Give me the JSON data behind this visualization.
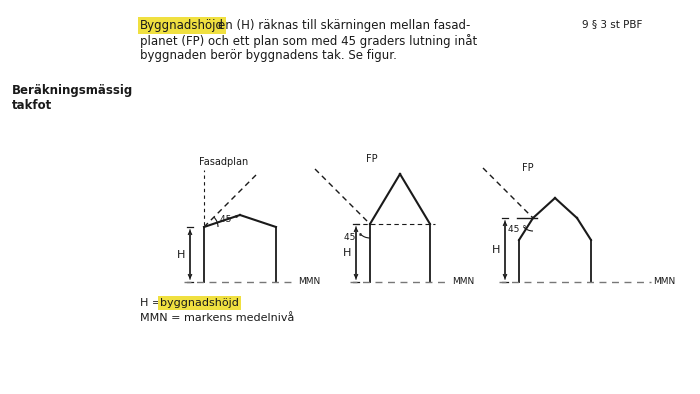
{
  "bg_color": "#ffffff",
  "text_color": "#231f20",
  "highlight_color": "#f0e040",
  "line_color": "#1a1a1a",
  "dashed_color": "#777777",
  "title_left_line1": "Beräkningsmässig",
  "title_left_line2": "takfot",
  "title_right": "9 § 3 st PBF",
  "main_text_highlighted": "Byggnadshöjd",
  "main_text_after": "en (H) räknas till skärningen mellan fasad-",
  "main_text_line2": "planet (FP) och ett plan som med 45 graders lutning inåt",
  "main_text_line3": "byggnaden berör byggnadens tak. Se figur.",
  "footnote1_pre": "H = ",
  "footnote1_highlighted": "byggnadshöjd",
  "footnote2": "MMN = markens medelnivå",
  "fig1_label": "Fasadplan",
  "fig2_label": "FP",
  "fig3_label": "FP",
  "angle_label": "45 °",
  "H_label": "H",
  "MMN_label": "MMN"
}
